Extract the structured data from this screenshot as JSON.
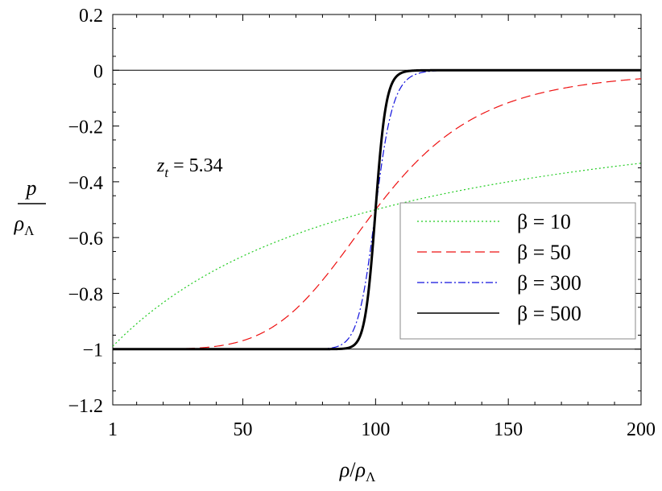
{
  "chart_data": {
    "type": "line",
    "xlabel": {
      "num": "ρ",
      "den": "ρ",
      "den_sub": "Λ"
    },
    "ylabel": {
      "num": "p",
      "den": "ρ",
      "den_sub": "Λ"
    },
    "xlim": [
      1,
      200
    ],
    "ylim": [
      -1.2,
      0.2
    ],
    "x_ticks": [
      1,
      50,
      100,
      150,
      200
    ],
    "x_tick_labels": [
      "1",
      "50",
      "100",
      "150",
      "200"
    ],
    "y_ticks": [
      0.2,
      0,
      -0.2,
      -0.4,
      -0.6,
      -0.8,
      -1,
      -1.2
    ],
    "y_tick_labels": [
      "0.2",
      "0",
      "−0.2",
      "−0.4",
      "−0.6",
      "−0.8",
      "−1",
      "−1.2"
    ],
    "reference_lines": [
      0,
      -1
    ],
    "grid": false,
    "legend_position": "right",
    "annotation": {
      "var": "z",
      "sub": "t",
      "rest": " = 5.34"
    },
    "transition_center": 100,
    "series": [
      {
        "name": "β = 10",
        "beta": 10,
        "color": "#22cc22",
        "dash": "2,3",
        "width": 1.2
      },
      {
        "name": "β = 50",
        "beta": 50,
        "color": "#ee1111",
        "dash": "12,6",
        "width": 1.2
      },
      {
        "name": "β = 300",
        "beta": 300,
        "color": "#1111dd",
        "dash": "9,3,2,3",
        "width": 1.2
      },
      {
        "name": "β = 500",
        "beta": 500,
        "color": "#000000",
        "dash": "",
        "width": 3
      }
    ]
  }
}
